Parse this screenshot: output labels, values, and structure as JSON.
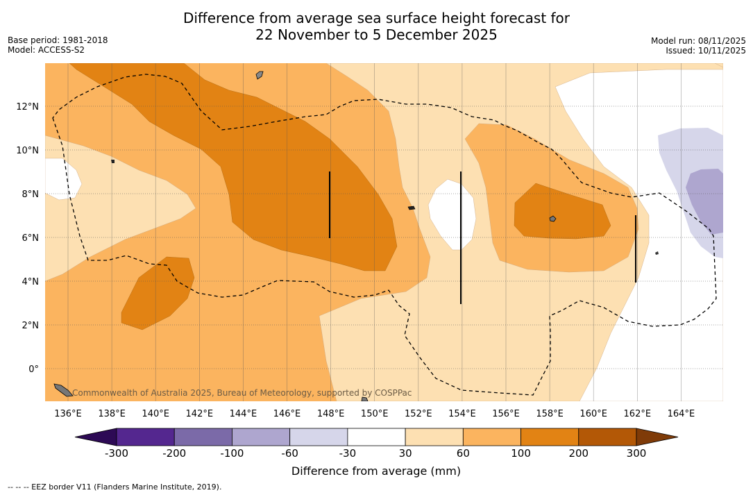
{
  "title": {
    "line1": "Difference from average sea surface height forecast for",
    "line2": "22 November to 5 December 2025"
  },
  "meta_left": {
    "base_period": "Base period: 1981-2018",
    "model": "Model: ACCESS-S2"
  },
  "meta_right": {
    "model_run": "Model run: 08/11/2025",
    "issued": "Issued: 10/11/2025"
  },
  "map": {
    "lat_labels": [
      "12°N",
      "10°N",
      "8°N",
      "6°N",
      "4°N",
      "2°N",
      "0°"
    ],
    "lon_labels": [
      "136°E",
      "138°E",
      "140°E",
      "142°E",
      "144°E",
      "146°E",
      "148°E",
      "150°E",
      "152°E",
      "154°E",
      "156°E",
      "158°E",
      "160°E",
      "162°E",
      "164°E"
    ],
    "copyright": "Commonwealth of Australia 2025, Bureau of Meteorology, supported by COSPPac"
  },
  "colorbar": {
    "tick_labels": [
      "-300",
      "-200",
      "-100",
      "-60",
      "-30",
      "30",
      "60",
      "100",
      "200",
      "300"
    ],
    "title": "Difference from average (mm)",
    "colors": {
      "below": "#2d0a55",
      "n300_n200": "#54278f",
      "n200_n100": "#7b6aa8",
      "n100_n60": "#aea6cf",
      "n60_n30": "#d6d6ea",
      "n30_30": "#ffffff",
      "p30_60": "#fde0b2",
      "p60_100": "#fbb45f",
      "p100_200": "#e28314",
      "p200_300": "#b35806",
      "above": "#7f3b08"
    }
  },
  "footnote": "--  --  -- EEZ border V11 (Flanders Marine Institute, 2019)."
}
